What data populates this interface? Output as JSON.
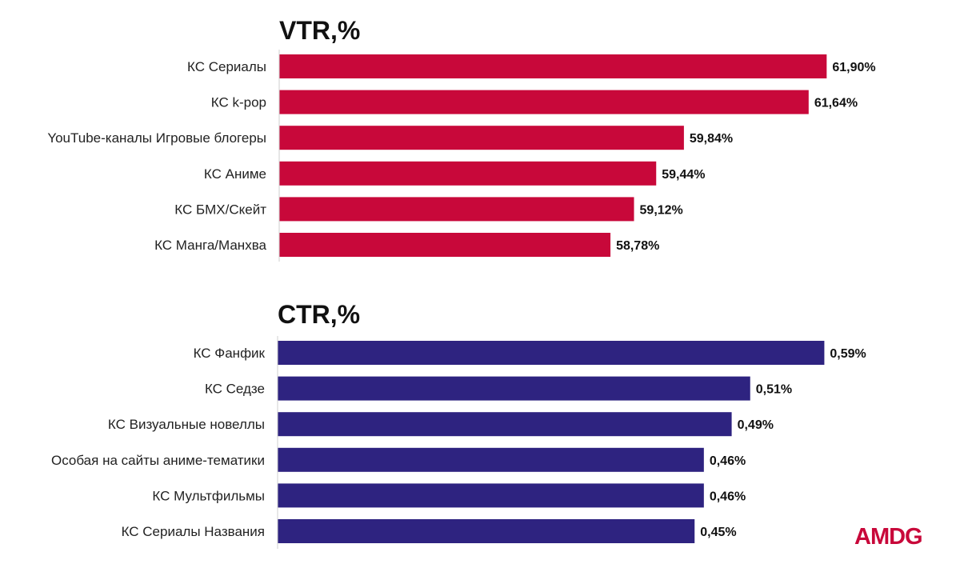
{
  "colors": {
    "vtr_bar": "#c8083a",
    "ctr_bar": "#2e2380",
    "logo": "#c8083a"
  },
  "logo": {
    "text": "AMDG"
  },
  "chart_data": [
    {
      "type": "bar",
      "orientation": "horizontal",
      "title": "VTR,%",
      "categories": [
        "КС Сериалы",
        "КС k-pop",
        "YouTube-каналы Игровые блогеры",
        "КС Аниме",
        "КС БМХ/Скейт",
        "КС Манга/Манхва"
      ],
      "values": [
        61.9,
        61.64,
        59.84,
        59.44,
        59.12,
        58.78
      ],
      "value_labels": [
        "61,90%",
        "61,64%",
        "59,84%",
        "59,44%",
        "59,12%",
        "58,78%"
      ],
      "xlim": [
        54,
        62
      ],
      "grid": false,
      "legend": "none"
    },
    {
      "type": "bar",
      "orientation": "horizontal",
      "title": "CTR,%",
      "categories": [
        "КС Фанфик",
        "КС Седзе",
        "КС Визуальные новеллы",
        "Особая на сайты аниме-тематики",
        "КС Мультфильмы",
        "КС Сериалы Названия"
      ],
      "values": [
        0.59,
        0.51,
        0.49,
        0.46,
        0.46,
        0.45
      ],
      "value_labels": [
        "0,59%",
        "0,51%",
        "0,49%",
        "0,46%",
        "0,46%",
        "0,45%"
      ],
      "xlim": [
        0,
        0.6
      ],
      "grid": false,
      "legend": "none"
    }
  ]
}
